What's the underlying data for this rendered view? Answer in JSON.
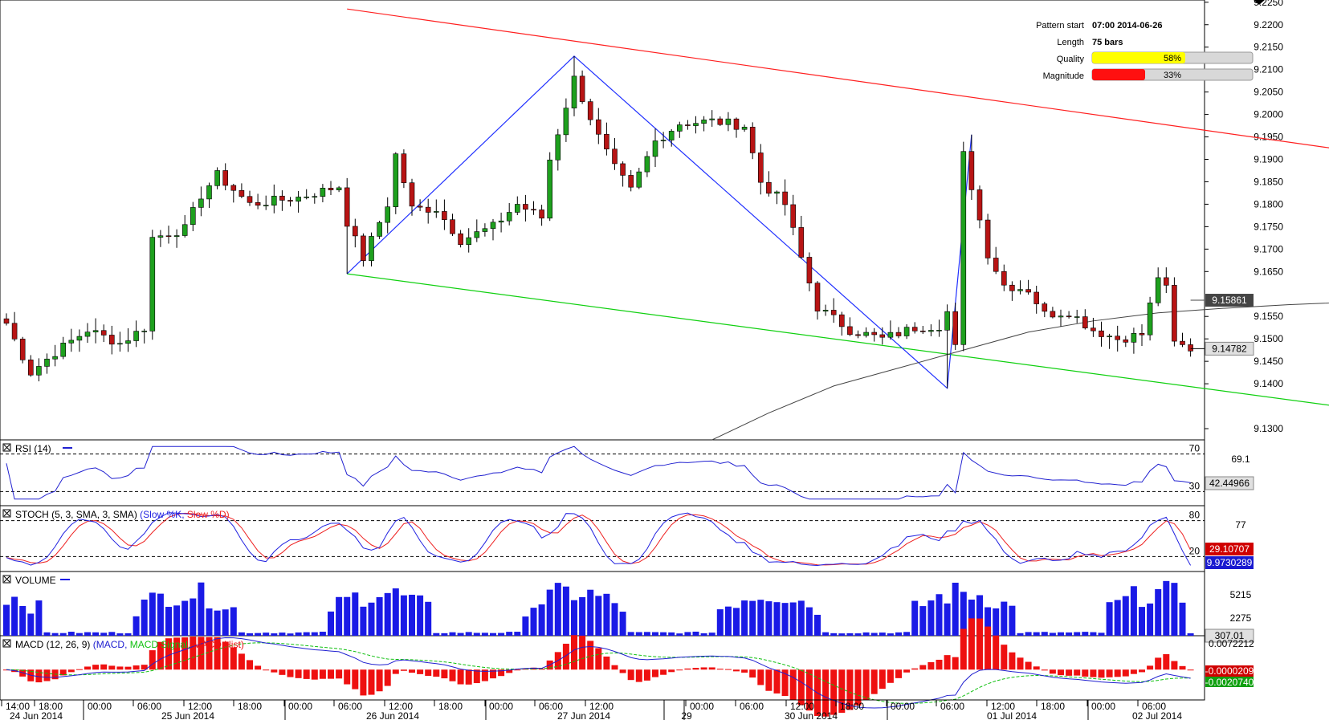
{
  "colors": {
    "bull": "#1ea01e",
    "bear": "#b81414",
    "resistance": "#ff2020",
    "support": "#10d010",
    "pattern": "#2030ff",
    "ma": "#444444",
    "rsi": "#2020d0",
    "stoch_k": "#2020e0",
    "stoch_d": "#ee2020",
    "volume": "#1a1ae6",
    "macd": "#2020d0",
    "macd_signal": "#10c010",
    "macd_hist": "#ee1010",
    "quality_bar": "#ffff00",
    "magnitude_bar": "#ff1010"
  },
  "pattern_info": {
    "start_label": "Pattern start",
    "start_value": "07:00 2014-06-26",
    "length_label": "Length",
    "length_value": "75 bars",
    "quality_label": "Quality",
    "quality_value": "58%",
    "quality_fraction": 0.58,
    "magnitude_label": "Magnitude",
    "magnitude_value": "33%",
    "magnitude_fraction": 0.33
  },
  "chart_data": [
    {
      "type": "candlestick",
      "y_ticks": [
        "9.2250",
        "9.2200",
        "9.2150",
        "9.2100",
        "9.2050",
        "9.2000",
        "9.1950",
        "9.1900",
        "9.1850",
        "9.1800",
        "9.1750",
        "9.1700",
        "9.1650",
        "9.1550",
        "9.1500",
        "9.1450",
        "9.1400",
        "9.1300"
      ],
      "ylim": [
        9.1275,
        9.2255
      ],
      "ma_label": "9.15861",
      "ma_value": 9.15861,
      "last_label": "9.14782",
      "last_value": 9.14782,
      "resistance_line": [
        [
          0,
          9.2235
        ],
        [
          146,
          9.1862
        ]
      ],
      "support_line": [
        [
          0,
          9.1645
        ],
        [
          146,
          9.1292
        ]
      ],
      "pattern_path": [
        [
          0,
          9.1645
        ],
        [
          28,
          9.213
        ],
        [
          74,
          9.139
        ],
        [
          77,
          9.1955
        ]
      ],
      "ma_curve": [
        [
          45,
          9.1275
        ],
        [
          52,
          9.1335
        ],
        [
          60,
          9.1395
        ],
        [
          68,
          9.1435
        ],
        [
          76,
          9.1475
        ],
        [
          84,
          9.1515
        ],
        [
          92,
          9.154
        ],
        [
          100,
          9.1558
        ],
        [
          108,
          9.1568
        ],
        [
          116,
          9.1576
        ],
        [
          124,
          9.1582
        ],
        [
          132,
          9.1586
        ]
      ]
    },
    {
      "type": "line",
      "panel": "rsi",
      "title": "RSI (14)",
      "levels": [
        70,
        30
      ],
      "level_labels": [
        "70",
        "30"
      ],
      "value_label": "69.1",
      "last_label": "42.44966",
      "last_value": 42.44966,
      "ylim": [
        15,
        85
      ]
    },
    {
      "type": "line",
      "panel": "stoch",
      "title": "STOCH (5, 3, SMA, 3, SMA)",
      "legend": [
        "Slow %K",
        "Slow %D"
      ],
      "levels": [
        80,
        20
      ],
      "level_labels": [
        "80",
        "20"
      ],
      "value_label": "77",
      "k_label": "29.10707",
      "d_label": "9.9730289",
      "ylim": [
        -5,
        105
      ]
    },
    {
      "type": "bar",
      "panel": "volume",
      "title": "VOLUME",
      "y_ticks": [
        "5215",
        "2275"
      ],
      "last_label": "307.01",
      "last_value": 307.01,
      "ylim": [
        0,
        8200
      ]
    },
    {
      "type": "bar",
      "panel": "macd",
      "title": "MACD (12, 26, 9)",
      "legend": [
        "MACD",
        "MACD Signal",
        "MACD Hist"
      ],
      "y_ticks": [
        "0.0072212"
      ],
      "signal_label": "-0.0000209",
      "macd_label": "-0.0020740",
      "ylim": [
        -0.0085,
        0.0095
      ]
    }
  ],
  "x_axis": {
    "times": [
      "14:00",
      "18:00",
      "00:00",
      "06:00",
      "12:00",
      "18:00",
      "00:00",
      "06:00",
      "12:00",
      "18:00",
      "00:00",
      "06:00",
      "12:00",
      "00:00",
      "06:00",
      "12:00",
      "18:00",
      "00:00",
      "06:00",
      "12:00",
      "18:00",
      "00:00",
      "06:00"
    ],
    "dates": [
      "24 Jun 2014",
      "25 Jun 2014",
      "26 Jun 2014",
      "27 Jun 2014",
      "29",
      "30 Jun 2014",
      "01 Jul 2014",
      "02 Jul 2014"
    ]
  }
}
